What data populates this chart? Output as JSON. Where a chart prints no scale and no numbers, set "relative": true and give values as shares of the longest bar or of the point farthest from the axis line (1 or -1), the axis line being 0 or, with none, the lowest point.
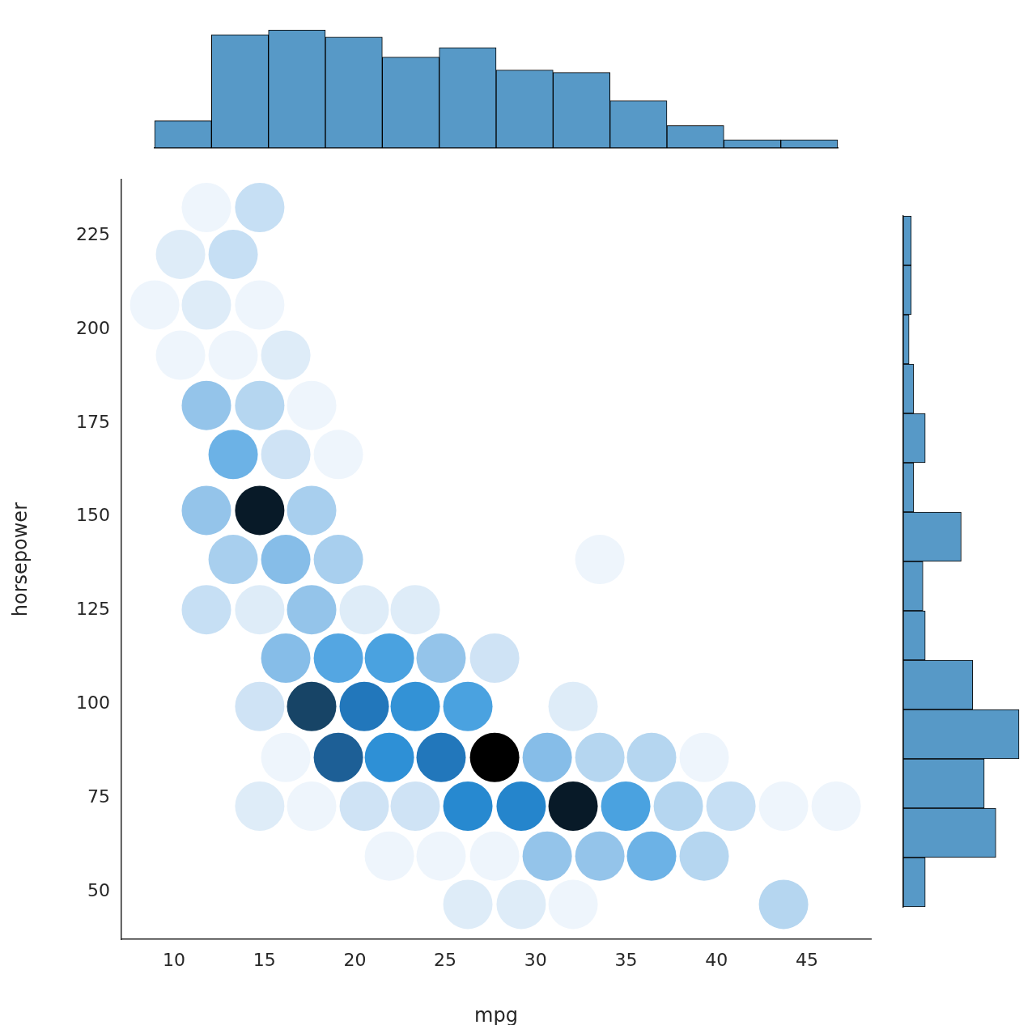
{
  "chart_data": [
    {
      "type": "bar",
      "categories": [
        null,
        null,
        null,
        null,
        null,
        null,
        null,
        null,
        null,
        null,
        null,
        null
      ],
      "values": [
        0.23,
        0.96,
        1,
        0.94,
        0.77,
        0.85,
        0.66,
        0.64,
        0.4,
        0.19,
        0.07,
        0.07
      ],
      "relative": true,
      "color": "#5799c7"
    },
    {
      "type": "scatter",
      "xlabel": "mpg",
      "ylabel": "horsepower",
      "xlim": [
        7.09,
        48.54
      ],
      "ylim": [
        37.3,
        239.9
      ],
      "xticks": [
        10,
        15,
        20,
        25,
        30,
        35,
        40,
        45
      ],
      "yticks": [
        50,
        75,
        100,
        125,
        150,
        175,
        200,
        225
      ],
      "x": [
        11.79,
        14.74,
        10.36,
        13.27,
        8.93,
        11.79,
        14.74,
        10.36,
        13.27,
        16.18,
        11.79,
        14.74,
        17.61,
        13.27,
        16.18,
        19.09,
        11.79,
        14.74,
        17.61,
        13.27,
        16.18,
        19.09,
        33.55,
        11.79,
        14.74,
        17.61,
        20.52,
        23.34,
        16.18,
        19.09,
        21.91,
        24.77,
        27.73,
        14.74,
        17.61,
        20.52,
        23.34,
        26.25,
        32.07,
        16.18,
        19.09,
        21.91,
        24.77,
        27.73,
        30.64,
        33.55,
        36.41,
        39.32,
        14.74,
        17.61,
        20.52,
        23.34,
        26.25,
        29.2,
        32.07,
        34.98,
        37.89,
        40.8,
        43.71,
        46.62,
        21.91,
        24.77,
        27.73,
        30.64,
        33.55,
        36.41,
        39.32,
        26.25,
        29.2,
        32.07,
        43.71
      ],
      "values": [
        232.5,
        232.5,
        220,
        220,
        206.5,
        206.5,
        206.5,
        193.1,
        193.1,
        193.1,
        179.7,
        179.7,
        179.7,
        166.6,
        166.6,
        166.6,
        151.7,
        151.7,
        151.7,
        138.6,
        138.6,
        138.6,
        138.6,
        125.2,
        125.2,
        125.2,
        125.2,
        125.2,
        112.3,
        112.3,
        112.3,
        112.3,
        112.3,
        99.4,
        99.4,
        99.4,
        99.4,
        99.4,
        99.4,
        85.8,
        85.8,
        85.8,
        85.8,
        85.8,
        85.8,
        85.8,
        85.8,
        85.8,
        72.8,
        72.8,
        72.8,
        72.8,
        72.8,
        72.8,
        72.8,
        72.8,
        72.8,
        72.8,
        72.8,
        72.8,
        59.5,
        59.5,
        59.5,
        59.5,
        59.5,
        59.5,
        59.5,
        46.6,
        46.6,
        46.6,
        46.6
      ],
      "colors": [
        "#eef5fc",
        "#c6dff4",
        "#deecf8",
        "#c6dff4",
        "#eef5fc",
        "#deecf8",
        "#eef5fc",
        "#eef5fc",
        "#eef5fc",
        "#deecf8",
        "#94c4ea",
        "#b5d6f0",
        "#eef5fc",
        "#6cb2e6",
        "#cfe3f5",
        "#eef5fc",
        "#94c4ea",
        "#081a28",
        "#a8cfee",
        "#a8cfee",
        "#86bde8",
        "#a8cfee",
        "#eef5fc",
        "#c6dff4",
        "#deecf8",
        "#94c4ea",
        "#deecf8",
        "#deecf8",
        "#86bde8",
        "#54a6e2",
        "#4aa2e0",
        "#94c4ea",
        "#cfe3f5",
        "#cfe3f5",
        "#174466",
        "#2277bb",
        "#3392d6",
        "#4aa2e0",
        "#deecf8",
        "#eef5fc",
        "#1d5f96",
        "#2e90d6",
        "#2277bb",
        "#000000",
        "#86bde8",
        "#b5d6f0",
        "#b5d6f0",
        "#eef5fc",
        "#deecf8",
        "#eef5fc",
        "#cfe3f5",
        "#cfe3f5",
        "#2789d0",
        "#2585cc",
        "#081a28",
        "#4aa2e0",
        "#b5d6f0",
        "#c6dff4",
        "#eef5fc",
        "#eef5fc",
        "#eef5fc",
        "#eef5fc",
        "#eef5fc",
        "#94c4ea",
        "#94c4ea",
        "#6cb2e6",
        "#b5d6f0",
        "#deecf8",
        "#deecf8",
        "#eef5fc",
        "#b5d6f0"
      ]
    },
    {
      "type": "bar",
      "orientation": "horizontal",
      "categories": [
        null,
        null,
        null,
        null,
        null,
        null,
        null,
        null,
        null,
        null,
        null,
        null,
        null,
        null
      ],
      "values": [
        0.07,
        0.07,
        0.05,
        0.09,
        0.19,
        0.09,
        0.5,
        0.17,
        0.19,
        0.6,
        1,
        0.7,
        0.8,
        0.19
      ],
      "relative": true,
      "color": "#5799c7"
    }
  ]
}
